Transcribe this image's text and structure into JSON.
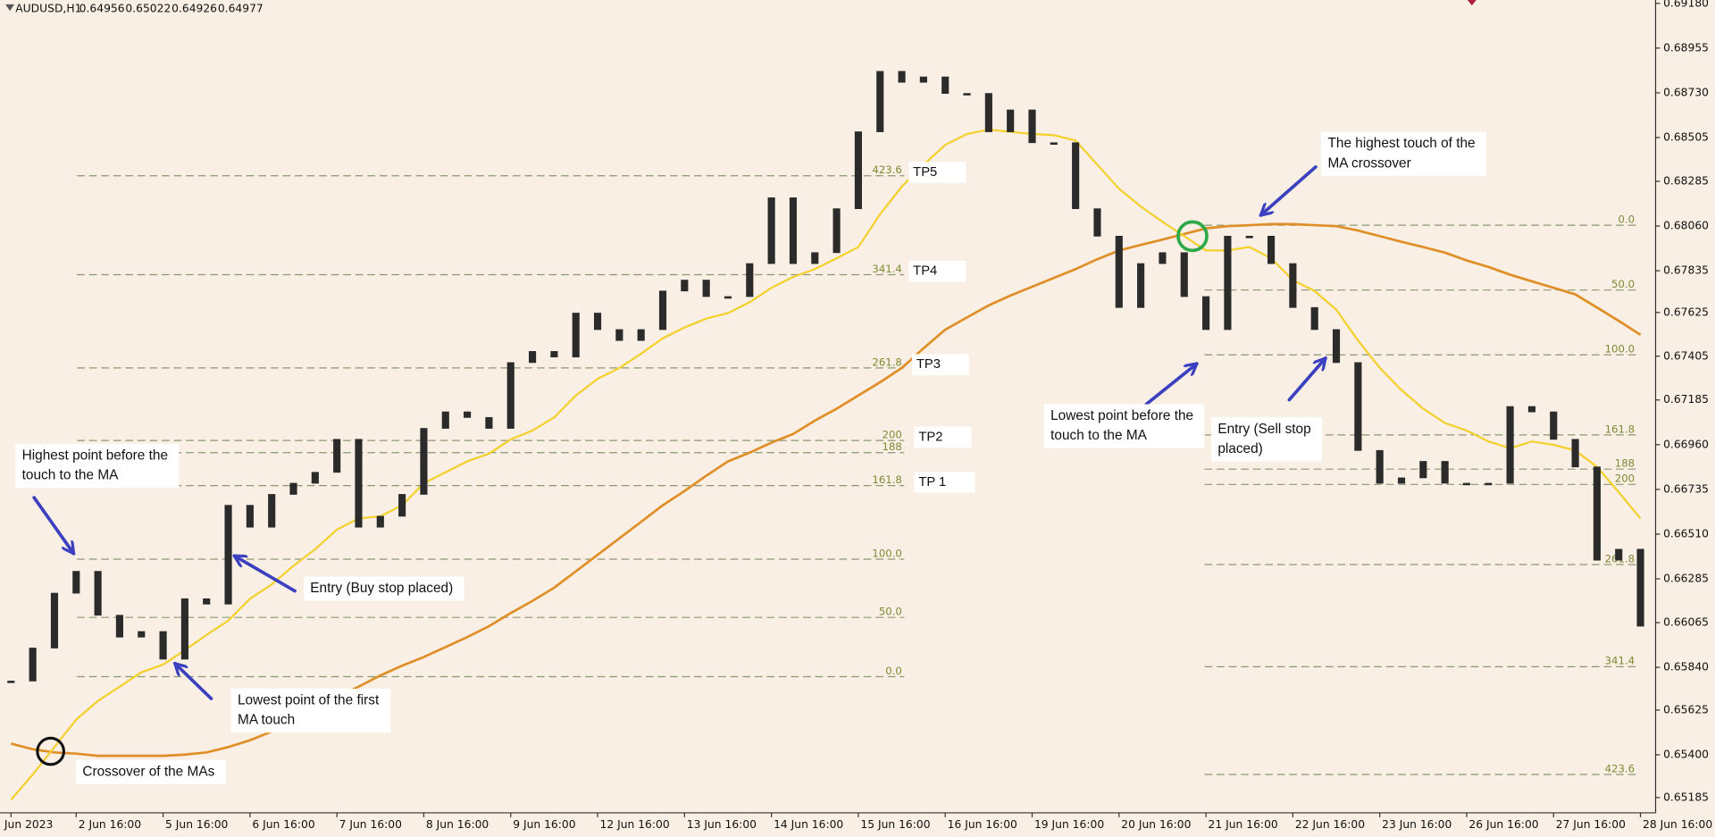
{
  "chart_data": {
    "type": "candlestick",
    "symbol": "AUDUSD,H1",
    "ohlc": [
      0.64956,
      0.65022,
      0.64926,
      0.64977
    ],
    "categories": [
      "Jun 2023",
      null,
      null,
      "2 Jun 16:00",
      null,
      null,
      null,
      "5 Jun 16:00",
      null,
      null,
      null,
      "6 Jun 16:00",
      null,
      null,
      null,
      "7 Jun 16:00",
      null,
      null,
      null,
      "8 Jun 16:00",
      null,
      null,
      null,
      "9 Jun 16:00",
      null,
      null,
      null,
      "12 Jun 16:00",
      null,
      null,
      null,
      "13 Jun 16:00",
      null,
      null,
      null,
      "14 Jun 16:00",
      null,
      null,
      null,
      "15 Jun 16:00",
      null,
      null,
      null,
      "16 Jun 16:00",
      null,
      null,
      null,
      "19 Jun 16:00",
      null,
      null,
      null,
      "20 Jun 16:00",
      null,
      null,
      null,
      "21 Jun 16:00",
      null,
      null,
      null,
      "22 Jun 16:00",
      null,
      null,
      null,
      "23 Jun 16:00",
      null,
      null,
      null,
      "26 Jun 16:00",
      null,
      null,
      null,
      "27 Jun 16:00",
      null,
      null,
      null,
      "28 Jun 16:00"
    ],
    "color": "#2b2b2b",
    "values": [
      0.65771,
      0.65937,
      0.66213,
      0.66323,
      0.66102,
      0.65992,
      0.6602,
      0.65881,
      0.66185,
      0.66158,
      0.66655,
      0.66545,
      0.6671,
      0.66766,
      0.66821,
      0.66987,
      0.66545,
      0.666,
      0.6671,
      0.67042,
      0.67125,
      0.67097,
      0.67042,
      0.67373,
      0.67429,
      0.67401,
      0.67622,
      0.67539,
      0.67484,
      0.67539,
      0.67733,
      0.67788,
      0.67705,
      0.67705,
      0.67871,
      0.68202,
      0.67871,
      0.67926,
      0.68147,
      0.68534,
      0.68838,
      0.68783,
      0.6881,
      0.68727,
      0.68727,
      0.68534,
      0.68644,
      0.68479,
      0.68479,
      0.68147,
      0.68009,
      0.6765,
      0.67871,
      0.67926,
      0.67705,
      0.67539,
      0.68009,
      0.68009,
      0.67871,
      0.6765,
      0.67539,
      0.67373,
      0.66931,
      0.66766,
      0.66793,
      0.66876,
      0.66766,
      0.66766,
      0.66766,
      0.67152,
      0.67125,
      0.66987,
      0.66848,
      0.66379,
      0.66434,
      0.66047
    ],
    "ma_fast": {
      "color": "#f4d02c",
      "values": [
        0.65174,
        0.65301,
        0.65439,
        0.65577,
        0.65671,
        0.65743,
        0.65815,
        0.65854,
        0.65926,
        0.66003,
        0.66075,
        0.66185,
        0.66257,
        0.66351,
        0.66434,
        0.66533,
        0.66589,
        0.666,
        0.66655,
        0.66766,
        0.66821,
        0.66876,
        0.66915,
        0.66987,
        0.67031,
        0.67097,
        0.67208,
        0.67291,
        0.67346,
        0.67418,
        0.67495,
        0.6755,
        0.67594,
        0.67622,
        0.67677,
        0.67749,
        0.67804,
        0.67843,
        0.67898,
        0.67954,
        0.68119,
        0.68258,
        0.68368,
        0.68468,
        0.68523,
        0.68545,
        0.68534,
        0.68523,
        0.68517,
        0.6849,
        0.68368,
        0.68247,
        0.68158,
        0.68081,
        0.68009,
        0.67937,
        0.67937,
        0.67954,
        0.67898,
        0.67788,
        0.67733,
        0.67639,
        0.67484,
        0.67346,
        0.67235,
        0.67141,
        0.67069,
        0.67031,
        0.66976,
        0.66942,
        0.66976,
        0.66959,
        0.66931,
        0.66848,
        0.66721,
        0.66589
      ]
    },
    "ma_slow": {
      "color": "#e08f28",
      "values": [
        0.65456,
        0.65428,
        0.65412,
        0.65406,
        0.65395,
        0.65395,
        0.65395,
        0.65395,
        0.65401,
        0.65412,
        0.65439,
        0.65473,
        0.65517,
        0.65572,
        0.65633,
        0.65688,
        0.65743,
        0.65799,
        0.65848,
        0.65892,
        0.65942,
        0.65992,
        0.66047,
        0.66113,
        0.66174,
        0.66241,
        0.66323,
        0.66406,
        0.66489,
        0.66572,
        0.66655,
        0.66727,
        0.66804,
        0.66876,
        0.6692,
        0.6697,
        0.67014,
        0.67081,
        0.67141,
        0.67208,
        0.67274,
        0.67346,
        0.67445,
        0.67539,
        0.676,
        0.67661,
        0.6771,
        0.67755,
        0.67799,
        0.67843,
        0.67893,
        0.67937,
        0.67965,
        0.67992,
        0.6802,
        0.68048,
        0.68059,
        0.68064,
        0.6807,
        0.6807,
        0.68064,
        0.68059,
        0.68037,
        0.68009,
        0.67981,
        0.67954,
        0.67926,
        0.67887,
        0.67854,
        0.67815,
        0.67782,
        0.67749,
        0.67716,
        0.6765,
        0.67583,
        0.67512
      ]
    },
    "ylim": [
      0.65108,
      0.69197
    ],
    "yticks": [
      {
        "value": 0.6918,
        "label": "0.69180"
      },
      0.68955,
      {
        "value": 0.6873,
        "label": "0.68730"
      },
      0.68505,
      0.68285,
      {
        "value": 0.6806,
        "label": "0.68060"
      },
      0.67835,
      0.67625,
      0.67405,
      0.67185,
      {
        "value": 0.6696,
        "label": "0.66960"
      },
      0.66735,
      {
        "value": 0.6651,
        "label": "0.66510"
      },
      0.66285,
      0.66065,
      {
        "value": 0.6584,
        "label": "0.65840"
      },
      0.65625,
      {
        "value": 0.654,
        "label": "0.65400"
      },
      0.65185
    ],
    "fib_buy": {
      "levels": [
        {
          "label": "423.6",
          "price": 0.68313
        },
        {
          "label": "341.4",
          "price": 0.67815
        },
        {
          "label": "261.8",
          "price": 0.67346
        },
        {
          "label": "200",
          "price": 0.66981
        },
        {
          "label": "188",
          "price": 0.6692
        },
        {
          "label": "161.8",
          "price": 0.66754
        },
        {
          "label": "100.0",
          "price": 0.66384
        },
        {
          "label": "50.0",
          "price": 0.66091
        },
        {
          "label": "0.0",
          "price": 0.65793
        }
      ]
    },
    "fib_sell": {
      "levels": [
        {
          "label": "0.0",
          "price": 0.68064
        },
        {
          "label": "50.0",
          "price": 0.67738
        },
        {
          "label": "100.0",
          "price": 0.67412
        },
        {
          "label": "161.8",
          "price": 0.67009
        },
        {
          "label": "188",
          "price": 0.66837
        },
        {
          "label": "200",
          "price": 0.6676
        },
        {
          "label": "261.8",
          "price": 0.66357
        },
        {
          "label": "341.4",
          "price": 0.65843
        },
        {
          "label": "423.6",
          "price": 0.65301
        }
      ]
    },
    "tp_labels": [
      "TP5",
      "TP4",
      "TP3",
      "TP2",
      "TP 1"
    ],
    "annotations": [
      {
        "lines": [
          "Highest point before the",
          "touch to the MA"
        ]
      },
      {
        "lines": [
          "Entry (Buy stop placed)"
        ]
      },
      {
        "lines": [
          "Lowest point of the first",
          "MA touch"
        ]
      },
      {
        "lines": [
          "Crossover of the MAs"
        ]
      },
      {
        "lines": [
          "The highest touch of the",
          "MA crossover"
        ]
      },
      {
        "lines": [
          "Lowest point before the",
          "touch to the MA"
        ]
      },
      {
        "lines": [
          "Entry (Sell stop",
          "placed)"
        ]
      }
    ]
  }
}
